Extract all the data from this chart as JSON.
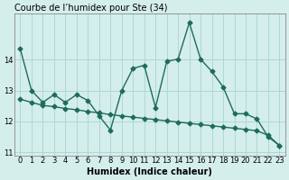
{
  "title": "Courbe de l’humidex pour Ste (34)",
  "xlabel": "Humidex (Indice chaleur)",
  "bg_color": "#d4eeec",
  "line_color": "#1e6b5e",
  "grid_color": "#aad4d0",
  "line1_x": [
    0,
    1,
    2,
    3,
    4,
    5,
    6,
    7,
    8,
    9,
    10,
    11,
    12,
    13,
    14,
    15,
    16,
    17,
    18,
    19,
    20,
    21,
    22,
    23
  ],
  "line1_y": [
    14.35,
    13.0,
    12.62,
    12.87,
    12.62,
    12.87,
    12.68,
    12.18,
    11.72,
    13.0,
    13.72,
    13.82,
    12.45,
    13.95,
    14.02,
    15.2,
    14.02,
    13.62,
    13.12,
    12.25,
    12.25,
    12.08,
    11.5,
    11.22
  ],
  "line2_x": [
    0,
    1,
    2,
    3,
    4,
    5,
    6,
    7,
    8,
    9,
    10,
    11,
    12,
    13,
    14,
    15,
    16,
    17,
    18,
    19,
    20,
    21,
    22,
    23
  ],
  "line2_y": [
    12.72,
    12.62,
    12.52,
    12.48,
    12.42,
    12.38,
    12.32,
    12.28,
    12.22,
    12.18,
    12.14,
    12.1,
    12.06,
    12.02,
    11.98,
    11.94,
    11.9,
    11.86,
    11.82,
    11.78,
    11.74,
    11.7,
    11.55,
    11.22
  ],
  "ylim": [
    10.9,
    15.5
  ],
  "yticks": [
    11,
    12,
    13,
    14
  ],
  "xticks": [
    0,
    1,
    2,
    3,
    4,
    5,
    6,
    7,
    8,
    9,
    10,
    11,
    12,
    13,
    14,
    15,
    16,
    17,
    18,
    19,
    20,
    21,
    22,
    23
  ],
  "marker": "D",
  "markersize": 2.5,
  "linewidth": 1.0,
  "title_fontsize": 7,
  "label_fontsize": 7,
  "tick_fontsize": 6
}
